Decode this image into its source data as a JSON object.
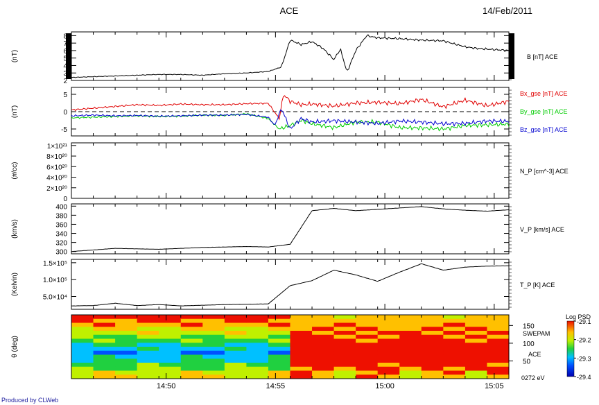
{
  "header": {
    "title": "ACE",
    "date": "14/Feb/2011"
  },
  "footer": {
    "credit": "Produced by CLWeb"
  },
  "time_axis": {
    "start": "14:45:40",
    "end": "15:05:40",
    "ticks": [
      {
        "label": "14:50",
        "minutes": 4.33
      },
      {
        "label": "14:55",
        "minutes": 9.33
      },
      {
        "label": "15:00",
        "minutes": 14.33
      },
      {
        "label": "15:05",
        "minutes": 19.33
      }
    ]
  },
  "chart_data": [
    {
      "type": "line",
      "ylabel": "(nT)",
      "ylim": [
        2,
        8.5
      ],
      "yticks": [
        "2",
        "3",
        "4",
        "5",
        "6",
        "7",
        "8"
      ],
      "series": [
        {
          "name": "B [nT] ACE",
          "color": "#000000",
          "x": [
            0,
            1,
            2,
            3,
            4,
            5,
            6,
            7,
            8,
            9,
            9.2,
            9.4,
            9.6,
            10,
            10.5,
            11,
            11.5,
            12,
            12.3,
            12.6,
            13,
            13.5,
            14,
            15,
            16,
            17,
            18,
            18.5,
            19,
            20
          ],
          "y": [
            2.4,
            2.5,
            2.6,
            2.7,
            2.8,
            2.8,
            2.7,
            2.9,
            3.0,
            3.2,
            3.4,
            3.6,
            3.8,
            7.4,
            6.8,
            7.2,
            6.3,
            4.8,
            6.2,
            3.1,
            6.0,
            8.0,
            7.7,
            7.6,
            7.4,
            7.3,
            6.5,
            6.3,
            6.2,
            6.0
          ]
        }
      ]
    },
    {
      "type": "line",
      "ylabel": "(nT)",
      "ylim": [
        -7,
        7
      ],
      "yticks": [
        "-5",
        "0",
        "5"
      ],
      "zero_line": true,
      "series": [
        {
          "name": "Bx_gse [nT] ACE",
          "color": "#e00000",
          "x": [
            0,
            1,
            2,
            3,
            4,
            5,
            6,
            7,
            8,
            9,
            9.5,
            9.7,
            10,
            10.5,
            11,
            12,
            13,
            14,
            15,
            16,
            17,
            18,
            19,
            20
          ],
          "y": [
            0.5,
            1.0,
            1.5,
            2.0,
            1.8,
            2.2,
            2.0,
            2.0,
            2.3,
            2.4,
            -2,
            5,
            3,
            2.0,
            2.2,
            1.6,
            2.5,
            2.7,
            2.3,
            3.5,
            1.4,
            3.3,
            1.7,
            3.0
          ]
        },
        {
          "name": "By_gse [nT] ACE",
          "color": "#00cc00",
          "x": [
            0,
            1,
            2,
            3,
            4,
            5,
            6,
            7,
            8,
            9,
            9.5,
            10,
            10.5,
            11,
            12,
            13,
            14,
            15,
            16,
            17,
            18,
            19,
            20
          ],
          "y": [
            -1.8,
            -1.6,
            -1.4,
            -1.2,
            -1.4,
            -1.3,
            -1.0,
            -1.1,
            -0.6,
            -2.0,
            -5,
            -4,
            -2.5,
            -3.5,
            -4.6,
            -3.0,
            -3.0,
            -4.6,
            -4.7,
            -5.0,
            -4.0,
            -3.8,
            -3.6
          ]
        },
        {
          "name": "Bz_gse [nT] ACE",
          "color": "#0000d0",
          "x": [
            0,
            1,
            2,
            3,
            4,
            5,
            6,
            7,
            8,
            9,
            9.3,
            9.6,
            10,
            10.5,
            11,
            12,
            13,
            14,
            15,
            16,
            17,
            18,
            19,
            20
          ],
          "y": [
            -1.2,
            -1.0,
            -1.2,
            -1.1,
            -1.3,
            -1.2,
            -1.0,
            -1.0,
            -0.8,
            -1.6,
            -4,
            1,
            -5,
            -2.0,
            -3.0,
            -2.6,
            -3.0,
            -3.4,
            -2.7,
            -3.0,
            -3.5,
            -3.4,
            -2.7,
            -2.8
          ]
        }
      ]
    },
    {
      "type": "line",
      "ylabel": "(#/cc)",
      "ylim": [
        0,
        1.05e+21
      ],
      "yticks": [
        "0",
        "2×10²⁰",
        "4×10²⁰",
        "6×10²⁰",
        "8×10²⁰",
        "1×10²¹"
      ],
      "zero_line": true,
      "series": [
        {
          "name": "N_P [cm^-3] ACE",
          "color": "#000000",
          "x": [],
          "y": []
        }
      ]
    },
    {
      "type": "line",
      "ylabel": "(km/s)",
      "ylim": [
        295,
        405
      ],
      "yticks": [
        "300",
        "320",
        "340",
        "360",
        "380",
        "400"
      ],
      "series": [
        {
          "name": "V_P [km/s] ACE",
          "color": "#000000",
          "x": [
            0,
            2,
            4,
            6,
            8,
            9,
            10,
            11,
            12,
            13,
            14,
            15,
            16,
            17,
            18,
            19,
            20
          ],
          "y": [
            300,
            307,
            305,
            309,
            311,
            310,
            316,
            390,
            395,
            390,
            393,
            396,
            399,
            394,
            391,
            389,
            392
          ]
        }
      ]
    },
    {
      "type": "line",
      "ylabel": "(Kelvin)",
      "ylim": [
        12000,
        160000
      ],
      "yticks": [
        "5.0×10⁴",
        "1.0×10⁵",
        "1.5×10⁵"
      ],
      "series": [
        {
          "name": "T_P [K] ACE",
          "color": "#000000",
          "x": [
            0,
            1,
            2,
            3,
            4,
            5,
            6,
            7,
            8,
            9,
            10,
            11,
            12,
            13,
            14,
            15,
            16,
            17,
            18,
            19,
            20
          ],
          "y": [
            22000,
            23000,
            30000,
            23000,
            26000,
            22000,
            24000,
            26000,
            27000,
            28000,
            82000,
            97000,
            128000,
            114000,
            95000,
            122000,
            147000,
            128000,
            137000,
            140000,
            141000
          ]
        }
      ]
    },
    {
      "type": "heatmap",
      "ylabel": "θ (deg)",
      "ylim": [
        0,
        180
      ],
      "yticks": [
        "50",
        "100",
        "150"
      ],
      "side_labels": [
        "SWEPAM",
        "ACE",
        "0272 eV"
      ],
      "colorbar": {
        "title": "Log PSD",
        "ticks": [
          "-29.1",
          "-29.2",
          "-29.3",
          "-29.4"
        ],
        "range": [
          -29.4,
          -29.1
        ]
      },
      "columns": 20,
      "rows": 16
    }
  ]
}
